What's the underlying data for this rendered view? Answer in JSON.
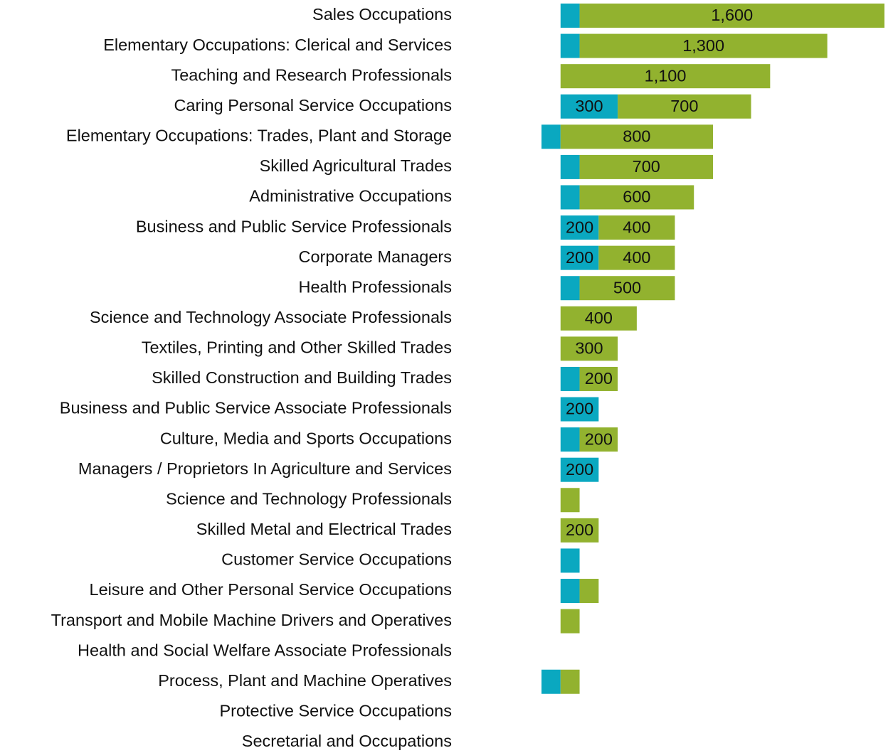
{
  "chart_data": {
    "type": "bar",
    "categories": [
      "Sales Occupations",
      "Elementary Occupations: Clerical and Services",
      "Teaching and Research Professionals",
      "Caring Personal Service Occupations",
      "Elementary Occupations: Trades, Plant and Storage",
      "Skilled Agricultural Trades",
      "Administrative Occupations",
      "Business and Public Service Professionals",
      "Corporate Managers",
      "Health Professionals",
      "Science and Technology Associate Professionals",
      "Textiles, Printing and Other Skilled Trades",
      "Skilled Construction and Building Trades",
      "Business and Public Service Associate Professionals",
      "Culture, Media and Sports Occupations",
      "Managers / Proprietors In Agriculture and Services",
      "Science and Technology Professionals",
      "Skilled Metal and Electrical Trades",
      "Customer Service Occupations",
      "Leisure and Other Personal Service Occupations",
      "Transport and Mobile Machine Drivers and Operatives",
      "Health and Social Welfare Associate Professionals",
      "Process, Plant and Machine Operatives",
      "Protective Service Occupations",
      "Secretarial and Occupations"
    ],
    "series": [
      {
        "color": "#0aa8c0",
        "values": [
          100,
          100,
          0,
          300,
          -100,
          100,
          100,
          200,
          200,
          100,
          0,
          0,
          100,
          200,
          100,
          200,
          0,
          0,
          100,
          100,
          0,
          0,
          -100,
          0,
          0
        ],
        "value_labels": [
          null,
          null,
          null,
          "300",
          null,
          null,
          null,
          "200",
          "200",
          null,
          null,
          null,
          null,
          "200",
          null,
          "200",
          null,
          null,
          null,
          null,
          null,
          null,
          null,
          null,
          null
        ]
      },
      {
        "color": "#92b22f",
        "values": [
          1600,
          1300,
          1100,
          700,
          800,
          700,
          600,
          400,
          400,
          500,
          400,
          300,
          200,
          0,
          200,
          0,
          100,
          200,
          0,
          100,
          100,
          0,
          100,
          0,
          0
        ],
        "value_labels": [
          "1,600",
          "1,300",
          "1,100",
          "700",
          "800",
          "700",
          "600",
          "400",
          "400",
          "500",
          "400",
          "300",
          "200",
          null,
          "200",
          null,
          null,
          "200",
          null,
          null,
          null,
          null,
          null,
          null,
          null
        ]
      }
    ],
    "xlim": [
      -100,
      1700
    ]
  }
}
